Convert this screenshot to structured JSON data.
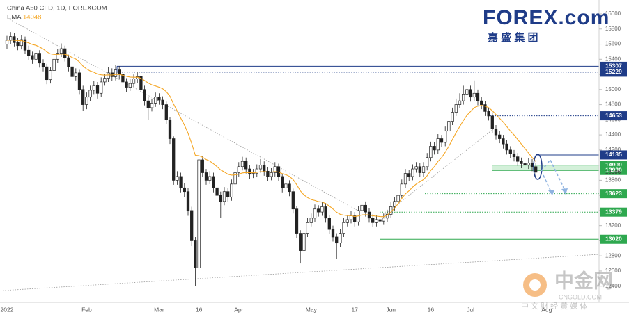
{
  "chart_data": {
    "type": "candlestick",
    "title": "China A50 CFD, 1D, FOREXCOM",
    "categories": [
      "2022",
      null,
      null,
      null,
      null,
      null,
      null,
      null,
      null,
      null,
      null,
      null,
      null,
      null,
      null,
      null,
      null,
      null,
      null,
      null,
      null,
      null,
      "Feb",
      null,
      null,
      null,
      null,
      null,
      null,
      null,
      null,
      null,
      null,
      null,
      null,
      null,
      null,
      null,
      null,
      null,
      null,
      null,
      "Mar",
      null,
      null,
      null,
      null,
      null,
      null,
      null,
      null,
      null,
      null,
      "16",
      null,
      null,
      null,
      null,
      null,
      null,
      null,
      null,
      null,
      null,
      "Apr",
      null,
      null,
      null,
      null,
      null,
      null,
      null,
      null,
      null,
      null,
      null,
      null,
      null,
      null,
      null,
      null,
      null,
      null,
      null,
      "May",
      null,
      null,
      null,
      null,
      null,
      null,
      null,
      null,
      null,
      null,
      null,
      "17",
      null,
      null,
      null,
      null,
      null,
      null,
      null,
      null,
      null,
      "Jun",
      null,
      null,
      null,
      null,
      null,
      null,
      null,
      null,
      null,
      null,
      "16",
      null,
      null,
      null,
      null,
      null,
      null,
      null,
      null,
      null,
      null,
      "Jul",
      null,
      null,
      null,
      null,
      null,
      null,
      null,
      null,
      null,
      null,
      null,
      null,
      null,
      null,
      null,
      null,
      null,
      null,
      null,
      null,
      "Aug"
    ],
    "open": [
      15600,
      15650,
      15700,
      15620,
      15580,
      15660,
      15520,
      15450,
      15400,
      15480,
      15350,
      15300,
      15130,
      15250,
      15400,
      15480,
      15540,
      15420,
      15300,
      15170,
      15220,
      15000,
      14800,
      14900,
      14990,
      15050,
      14950,
      15100,
      15150,
      15220,
      15170,
      15260,
      15200,
      15100,
      15030,
      15080,
      15140,
      15170,
      15000,
      14850,
      14760,
      14820,
      14900,
      14860,
      14800,
      14600,
      14350,
      13800,
      13850,
      13700,
      13650,
      13400,
      13000,
      12640,
      14070,
      13900,
      13800,
      13850,
      13700,
      13600,
      13520,
      13650,
      13580,
      13750,
      13900,
      13980,
      14050,
      13950,
      13880,
      13890,
      13950,
      14000,
      13920,
      13850,
      13900,
      13980,
      13850,
      13700,
      13750,
      13650,
      13420,
      13100,
      12870,
      13100,
      13240,
      13300,
      13420,
      13380,
      13450,
      13300,
      13150,
      13050,
      12970,
      13100,
      13240,
      13280,
      13330,
      13250,
      13400,
      13470,
      13380,
      13300,
      13240,
      13280,
      13260,
      13300,
      13350,
      13450,
      13520,
      13600,
      13750,
      13890,
      13850,
      13950,
      13980,
      13900,
      13980,
      14100,
      14250,
      14200,
      14350,
      14300,
      14450,
      14580,
      14700,
      14800,
      14850,
      14940,
      15000,
      14900,
      14950,
      14850,
      14800,
      14710,
      14650,
      14480,
      14400,
      14350,
      14280,
      14200,
      14150,
      14110,
      14050,
      14020,
      14000,
      14030,
      13980,
      null,
      null,
      null
    ],
    "high": [
      15710,
      15760,
      15750,
      15680,
      15720,
      15700,
      15580,
      15500,
      15540,
      15520,
      15400,
      15340,
      15300,
      15450,
      15540,
      15610,
      15580,
      15460,
      15350,
      15280,
      15260,
      15050,
      14960,
      15050,
      15110,
      15100,
      15160,
      15210,
      15300,
      15280,
      15320,
      15310,
      15250,
      15150,
      15140,
      15200,
      15230,
      15210,
      15050,
      14900,
      14880,
      14960,
      14950,
      14910,
      14840,
      14640,
      14380,
      13920,
      13900,
      13760,
      13700,
      13450,
      13050,
      14150,
      14120,
      13950,
      13920,
      13900,
      13750,
      13650,
      13710,
      13700,
      13810,
      13960,
      14040,
      14110,
      14100,
      14000,
      13950,
      14010,
      14080,
      14050,
      13970,
      13960,
      14040,
      14020,
      13890,
      13810,
      13800,
      13690,
      13460,
      13140,
      13160,
      13300,
      13360,
      13480,
      13470,
      13510,
      13500,
      13340,
      13200,
      13100,
      13160,
      13300,
      13340,
      13390,
      13380,
      13460,
      13530,
      13520,
      13430,
      13350,
      13340,
      13330,
      13360,
      13410,
      13510,
      13580,
      13660,
      13810,
      13950,
      13940,
      14010,
      14040,
      14030,
      14040,
      14160,
      14310,
      14300,
      14410,
      14400,
      14510,
      14640,
      14760,
      14880,
      14950,
      15050,
      15100,
      15050,
      15120,
      15000,
      14900,
      14850,
      14760,
      14700,
      14530,
      14450,
      14400,
      14330,
      14250,
      14200,
      14160,
      14100,
      14070,
      14090,
      14080,
      14030,
      null,
      null,
      null
    ],
    "low": [
      15540,
      15600,
      15570,
      15520,
      15530,
      15470,
      15390,
      15340,
      15350,
      15290,
      15240,
      15070,
      15080,
      15200,
      15350,
      15430,
      15370,
      15240,
      15110,
      15120,
      14940,
      14720,
      14740,
      14850,
      14940,
      14880,
      14900,
      15050,
      15100,
      15110,
      15120,
      15140,
      15040,
      14970,
      14980,
      15030,
      15090,
      14940,
      14790,
      14600,
      14710,
      14770,
      14800,
      14740,
      14540,
      14280,
      13740,
      13740,
      13640,
      13580,
      13330,
      12930,
      12400,
      12600,
      13840,
      13740,
      13750,
      13640,
      13540,
      13300,
      13470,
      13520,
      13530,
      13700,
      13850,
      13930,
      13890,
      13820,
      13830,
      13840,
      13900,
      13860,
      13790,
      13800,
      13850,
      13790,
      13640,
      13650,
      13590,
      13360,
      13040,
      12700,
      12820,
      13050,
      13190,
      13250,
      13320,
      13330,
      13240,
      13090,
      12990,
      12760,
      12920,
      13050,
      13190,
      13230,
      13190,
      13200,
      13350,
      13320,
      13240,
      13180,
      13190,
      13200,
      13210,
      13250,
      13300,
      13400,
      13470,
      13550,
      13700,
      13790,
      13800,
      13900,
      13840,
      13850,
      13930,
      14050,
      14140,
      14150,
      14240,
      14250,
      14400,
      14530,
      14650,
      14750,
      14800,
      14890,
      14840,
      14850,
      14790,
      14740,
      14650,
      14590,
      14420,
      14340,
      14290,
      14220,
      14140,
      14090,
      14050,
      13990,
      13960,
      13940,
      13950,
      13920,
      13850,
      null,
      null,
      null
    ],
    "close": [
      15650,
      15700,
      15620,
      15580,
      15660,
      15520,
      15450,
      15400,
      15480,
      15350,
      15300,
      15130,
      15250,
      15400,
      15480,
      15540,
      15420,
      15300,
      15170,
      15220,
      15000,
      14800,
      14900,
      14990,
      15050,
      14950,
      15100,
      15150,
      15220,
      15170,
      15260,
      15200,
      15100,
      15030,
      15080,
      15140,
      15170,
      15000,
      14850,
      14760,
      14820,
      14900,
      14860,
      14800,
      14600,
      14350,
      13800,
      13850,
      13700,
      13650,
      13400,
      13000,
      12640,
      14070,
      13900,
      13800,
      13850,
      13700,
      13600,
      13520,
      13650,
      13580,
      13750,
      13900,
      13980,
      14050,
      13950,
      13880,
      13890,
      13950,
      14000,
      13920,
      13850,
      13900,
      13980,
      13850,
      13700,
      13750,
      13650,
      13420,
      13100,
      12870,
      13100,
      13240,
      13300,
      13420,
      13380,
      13450,
      13300,
      13150,
      13050,
      12970,
      13100,
      13240,
      13280,
      13330,
      13250,
      13400,
      13470,
      13380,
      13300,
      13240,
      13280,
      13260,
      13300,
      13350,
      13450,
      13520,
      13600,
      13750,
      13890,
      13850,
      13950,
      13980,
      13900,
      13980,
      14100,
      14250,
      14200,
      14350,
      14300,
      14450,
      14580,
      14700,
      14800,
      14850,
      14940,
      15000,
      14900,
      14950,
      14850,
      14800,
      14710,
      14650,
      14480,
      14400,
      14350,
      14280,
      14200,
      14150,
      14110,
      14050,
      14020,
      14000,
      14030,
      13980,
      13906,
      null,
      null,
      null
    ],
    "up_color": "#ffffff",
    "down_color": "#222222",
    "candle_edge": "#222222",
    "ema": {
      "name": "EMA",
      "color": "#f5a623",
      "values": [
        15650,
        15655,
        15652,
        15645,
        15646,
        15633,
        15616,
        15596,
        15585,
        15562,
        15537,
        15497,
        15472,
        15464,
        15464,
        15470,
        15466,
        15450,
        15423,
        15403,
        15364,
        15310,
        15271,
        15245,
        15228,
        15204,
        15194,
        15190,
        15193,
        15191,
        15199,
        15199,
        15189,
        15174,
        15165,
        15162,
        15163,
        15147,
        15118,
        15087,
        15062,
        15047,
        15031,
        15010,
        14971,
        14912,
        14807,
        14717,
        14621,
        14529,
        14422,
        14287,
        14131,
        14125,
        14104,
        14075,
        14054,
        14020,
        13980,
        13937,
        13910,
        13880,
        13869,
        13872,
        13882,
        13897,
        13902,
        13900,
        13899,
        13904,
        13914,
        13915,
        13909,
        13908,
        13915,
        13909,
        13888,
        13874,
        13851,
        13809,
        13741,
        13660,
        13606,
        13571,
        13545,
        13533,
        13518,
        13512,
        13492,
        13459,
        13420,
        13377,
        13350,
        13339,
        13333,
        13333,
        13320,
        13328,
        13342,
        13345,
        13341,
        13331,
        13326,
        13320,
        13318,
        13340,
        13380,
        13430,
        13490,
        13560,
        13620,
        13660,
        13710,
        13750,
        13780,
        13810,
        13860,
        13930,
        13980,
        14050,
        14100,
        14170,
        14250,
        14340,
        14430,
        14510,
        14590,
        14660,
        14710,
        14760,
        14780,
        14790,
        14780,
        14760,
        14720,
        14670,
        14620,
        14570,
        14510,
        14450,
        14400,
        14340,
        14280,
        14220,
        14160,
        14100,
        14048,
        null,
        null,
        null
      ]
    },
    "ylim": [
      12186,
      16184
    ],
    "yticks": [
      12400,
      12600,
      12800,
      13000,
      13200,
      13400,
      13600,
      13800,
      14000,
      14200,
      14400,
      14600,
      14800,
      15000,
      15200,
      15400,
      15600,
      15800,
      16000
    ],
    "price_levels": [
      {
        "value": 15307,
        "color": "#1f3c88",
        "style": "solid"
      },
      {
        "value": 15229,
        "color": "#1f3c88",
        "style": "dotted"
      },
      {
        "value": 14653,
        "color": "#1f3c88",
        "style": "dotted"
      },
      {
        "value": 14135,
        "color": "#1f3c88",
        "style": "solid"
      },
      {
        "value": 14000,
        "color": "#2ea84f",
        "style": "solid"
      },
      {
        "value": 13930,
        "color": "#2ea84f",
        "style": "solid"
      },
      {
        "value": 13623,
        "color": "#2ea84f",
        "style": "dotted"
      },
      {
        "value": 13379,
        "color": "#2ea84f",
        "style": "dotted"
      },
      {
        "value": 13020,
        "color": "#2ea84f",
        "style": "solid"
      }
    ]
  },
  "logo": {
    "brand": "FOREX.com",
    "subtitle": "嘉 盛 集 团"
  },
  "watermark": {
    "name": "中金网",
    "site": "CNGOLD.COM",
    "tagline": "中 文 财 经 黄 媒 体"
  }
}
